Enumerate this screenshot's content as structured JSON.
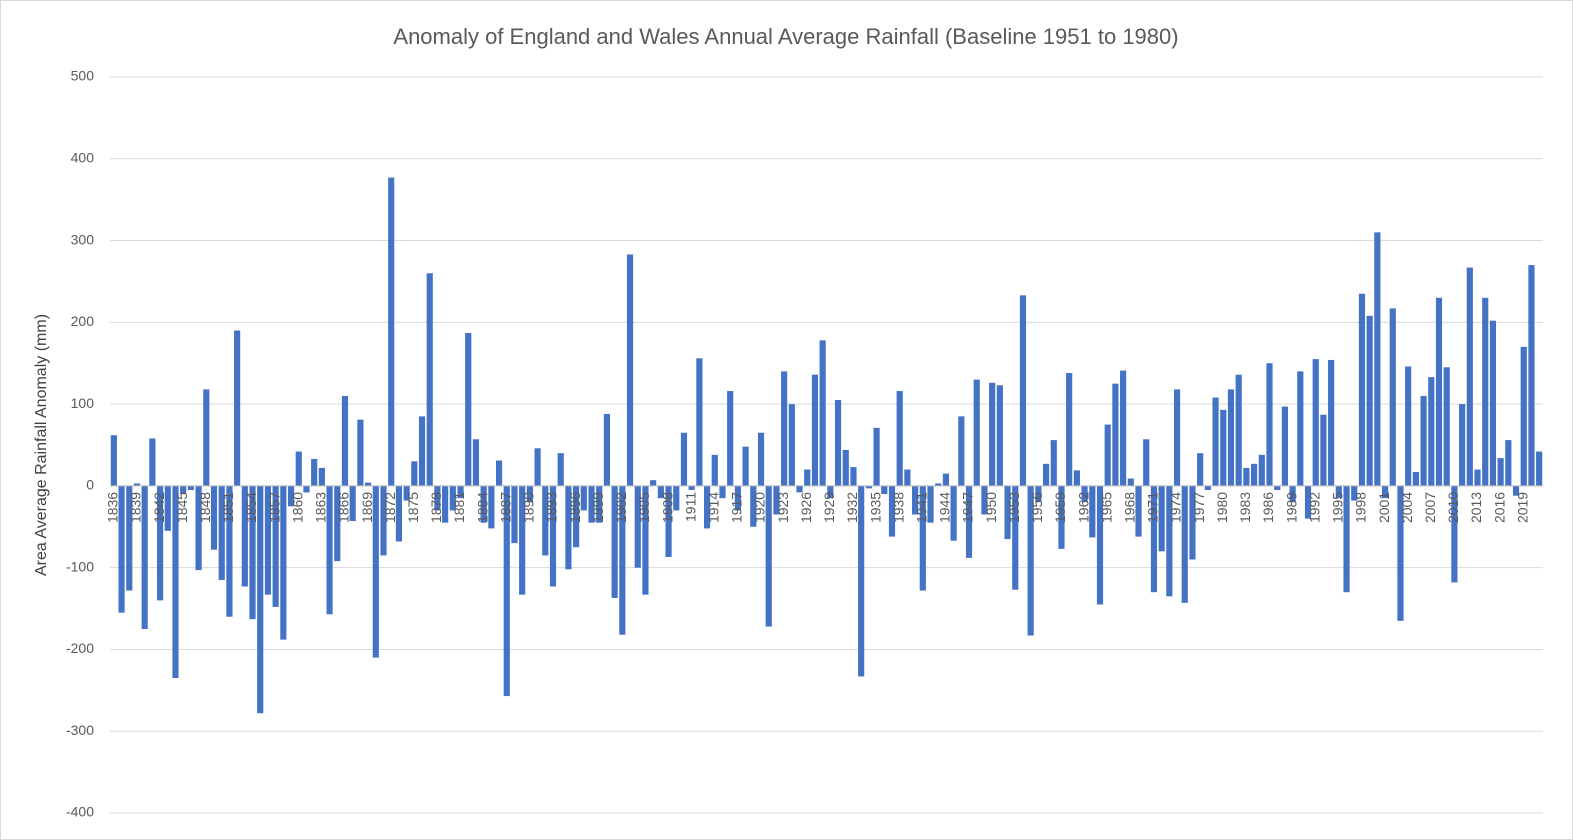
{
  "chart_data": {
    "type": "bar",
    "title": "Anomaly of England and Wales Annual Average Rainfall (Baseline 1951 to 1980)",
    "y_label": "Area Average Rainfall Anomaly (mm)",
    "color": "#4472c4",
    "grid": true,
    "ylim": [
      -400,
      500
    ],
    "yticks": [
      -400,
      -300,
      -200,
      -100,
      0,
      100,
      200,
      300,
      400,
      500
    ],
    "categories": [
      "1836",
      null,
      null,
      "1839",
      null,
      null,
      "1842",
      null,
      null,
      "1845",
      null,
      null,
      "1848",
      null,
      null,
      "1851",
      null,
      null,
      "1854",
      null,
      null,
      "1857",
      null,
      null,
      "1860",
      null,
      null,
      "1863",
      null,
      null,
      "1866",
      null,
      null,
      "1869",
      null,
      null,
      "1872",
      null,
      null,
      "1875",
      null,
      null,
      "1878",
      null,
      null,
      "1881",
      null,
      null,
      "1884",
      null,
      null,
      "1887",
      null,
      null,
      "1890",
      null,
      null,
      "1893",
      null,
      null,
      "1896",
      null,
      null,
      "1899",
      null,
      null,
      "1902",
      null,
      null,
      "1905",
      null,
      null,
      "1908",
      null,
      null,
      "1911",
      null,
      null,
      "1914",
      null,
      null,
      "1917",
      null,
      null,
      "1920",
      null,
      null,
      "1923",
      null,
      null,
      "1926",
      null,
      null,
      "1929",
      null,
      null,
      "1932",
      null,
      null,
      "1935",
      null,
      null,
      "1938",
      null,
      null,
      "1941",
      null,
      null,
      "1944",
      null,
      null,
      "1947",
      null,
      null,
      "1950",
      null,
      null,
      "1953",
      null,
      null,
      "1956",
      null,
      null,
      "1959",
      null,
      null,
      "1962",
      null,
      null,
      "1965",
      null,
      null,
      "1968",
      null,
      null,
      "1971",
      null,
      null,
      "1974",
      null,
      null,
      "1977",
      null,
      null,
      "1980",
      null,
      null,
      "1983",
      null,
      null,
      "1986",
      null,
      null,
      "1989",
      null,
      null,
      "1992",
      null,
      null,
      "1995",
      null,
      null,
      "1998",
      null,
      null,
      "2001",
      null,
      null,
      "2004",
      null,
      null,
      "2007",
      null,
      null,
      "2010",
      null,
      null,
      "2013",
      null,
      null,
      "2016",
      null,
      null,
      "2019",
      null,
      null
    ],
    "values": [
      62,
      -155,
      -128,
      3,
      -175,
      58,
      -140,
      -55,
      -235,
      -10,
      -5,
      -103,
      118,
      -78,
      -115,
      -160,
      190,
      -123,
      -163,
      -278,
      -133,
      -148,
      -188,
      -25,
      42,
      -8,
      33,
      22,
      -157,
      -92,
      110,
      -43,
      81,
      4,
      -210,
      -85,
      377,
      -68,
      -18,
      30,
      85,
      260,
      -30,
      -45,
      -30,
      -15,
      187,
      57,
      -45,
      -52,
      31,
      -257,
      -70,
      -133,
      -20,
      46,
      -85,
      -123,
      40,
      -102,
      -75,
      -30,
      -45,
      -45,
      88,
      -137,
      -182,
      283,
      -100,
      -133,
      7,
      -15,
      -87,
      -30,
      65,
      -5,
      156,
      -52,
      38,
      -15,
      116,
      -30,
      48,
      -50,
      65,
      -172,
      -35,
      140,
      100,
      -8,
      20,
      136,
      178,
      -15,
      105,
      44,
      23,
      -233,
      -3,
      71,
      -10,
      -62,
      116,
      20,
      -35,
      -128,
      -45,
      3,
      15,
      -67,
      85,
      -88,
      130,
      -35,
      126,
      123,
      -65,
      -127,
      233,
      -183,
      -20,
      27,
      56,
      -77,
      138,
      19,
      -20,
      -63,
      -145,
      75,
      125,
      141,
      9,
      -62,
      57,
      -130,
      -80,
      -135,
      118,
      -143,
      -90,
      40,
      -5,
      108,
      93,
      118,
      136,
      22,
      27,
      38,
      150,
      -5,
      97,
      -20,
      140,
      -40,
      155,
      87,
      154,
      -15,
      -130,
      -18,
      235,
      208,
      310,
      -15,
      217,
      -165,
      146,
      17,
      110,
      133,
      230,
      145,
      -118,
      100,
      267,
      20,
      230,
      202,
      34,
      56,
      -12,
      170,
      270,
      42
    ]
  }
}
